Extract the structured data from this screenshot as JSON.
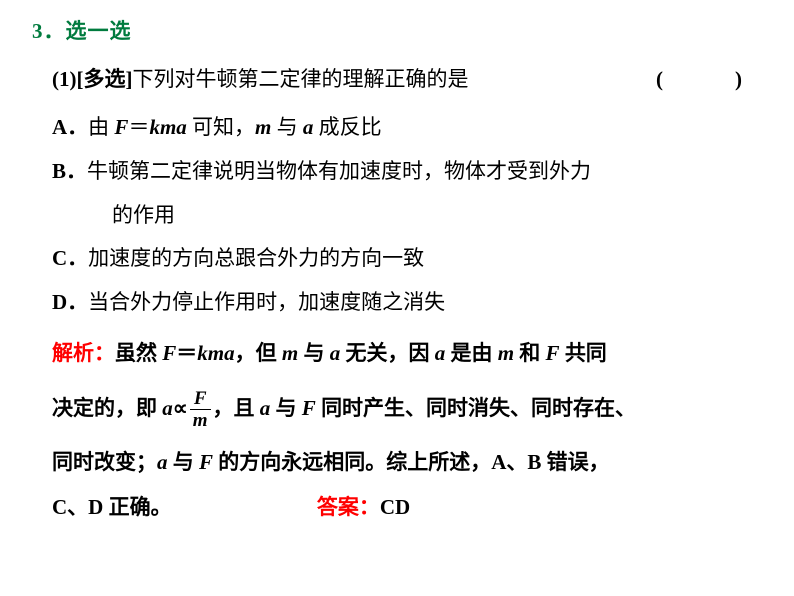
{
  "colors": {
    "green": "#007b3e",
    "red": "#ff0000",
    "text": "#000000",
    "bg": "#ffffff"
  },
  "heading_num": "3",
  "heading_text": "．选一选",
  "stem_prefix": "(1)[多选]",
  "stem_text": "下列对牛顿第二定律的理解正确的是",
  "paren": "(　　)",
  "optA_label": "A．",
  "optA_t1": "由 ",
  "optA_F": "F",
  "optA_eq": "＝",
  "optA_k": "k",
  "optA_m": "m",
  "optA_a": "a",
  "optA_t2": " 可知，",
  "optA_m2": "m",
  "optA_t3": " 与 ",
  "optA_a2": "a",
  "optA_t4": " 成反比",
  "optB_label": "B．",
  "optB_t1": "牛顿第二定律说明当物体有加速度时，物体才受到外力",
  "optB_t2": "的作用",
  "optC_label": "C．",
  "optC_t1": "加速度的方向总跟合外力的方向一致",
  "optD_label": "D．",
  "optD_t1": "当合外力停止作用时，加速度随之消失",
  "explain_label": "解析：",
  "e_t1": "虽然 ",
  "e_F": "F",
  "e_eq": "＝",
  "e_k": "k",
  "e_m": "m",
  "e_a": "a",
  "e_t2": "，但 ",
  "e_m2": "m",
  "e_t3": " 与 ",
  "e_a2": "a",
  "e_t4": " 无关，因 ",
  "e_a3": "a",
  "e_t5": " 是由 ",
  "e_m3": "m",
  "e_t6": " 和 ",
  "e_F2": "F",
  "e_t7": " 共同",
  "e_line2a": "决定的，即 ",
  "e_a4": "a",
  "e_prop": "∝",
  "frac_num": "F",
  "frac_den": "m",
  "e_t8": "，且 ",
  "e_a5": "a",
  "e_t9": " 与 ",
  "e_F3": "F",
  "e_t10": " 同时产生、同时消失、同时存在、",
  "e_line3a": "同时改变；",
  "e_a6": "a",
  "e_t11": " 与 ",
  "e_F4": "F",
  "e_t12": " 的方向永远相同。综上所述，A、B 错误，",
  "e_line4": "C、D 正确。",
  "answer_label": "答案：",
  "answer_text": "CD"
}
